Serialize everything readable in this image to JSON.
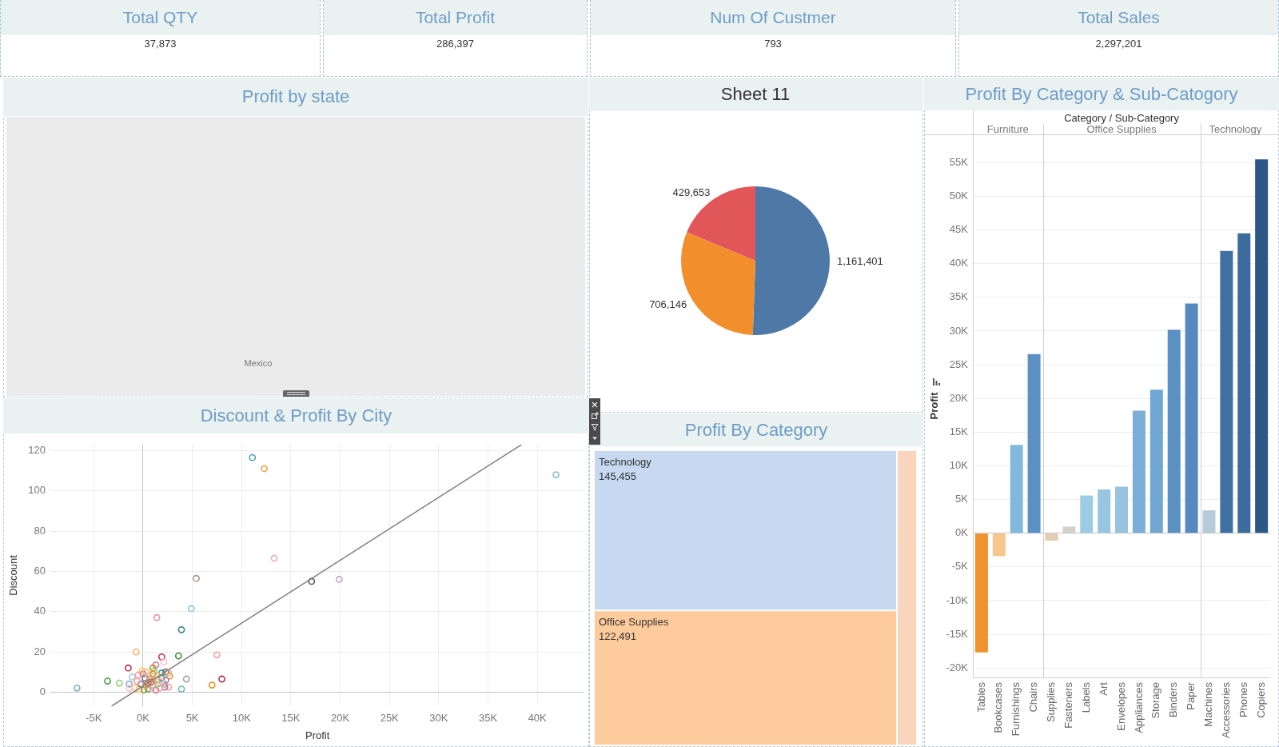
{
  "chart_data": [
    {
      "type": "other",
      "categories": [
        "Total QTY",
        "Total Profit",
        "Num Of Custmer",
        "Total Sales"
      ],
      "values": [
        37873,
        286397,
        793,
        2297201
      ],
      "value_labels": [
        "37,873",
        "286,397",
        "793",
        "2,297,201"
      ]
    },
    {
      "type": "other",
      "title": "Profit by state",
      "annotations": [
        "Mexico"
      ]
    },
    {
      "type": "pie",
      "title": "Sheet 11",
      "categories": [
        null,
        null,
        null
      ],
      "values": [
        1161401,
        706146,
        429653
      ],
      "value_labels": [
        "1,161,401",
        "706,146",
        "429,653"
      ],
      "colors": [
        "#4e79a7",
        "#f28e2b",
        "#e15759"
      ]
    },
    {
      "type": "bar",
      "title": "Profit By Category & Sub-Catogory",
      "xlabel": "Category / Sub-Category",
      "ylabel": "Profit",
      "categories": [
        "Tables",
        "Bookcases",
        "Furnishings",
        "Chairs",
        "Supplies",
        "Fasteners",
        "Labels",
        "Art",
        "Envelopes",
        "Appliances",
        "Storage",
        "Binders",
        "Paper",
        "Machines",
        "Accessories",
        "Phones",
        "Copiers"
      ],
      "values": [
        -17700,
        -3400,
        13100,
        26600,
        -1100,
        1000,
        5600,
        6500,
        6900,
        18200,
        21300,
        30200,
        34100,
        3400,
        41900,
        44500,
        55500
      ],
      "colors": [
        "#f0932f",
        "#f6c68d",
        "#80b9dc",
        "#5a90c4",
        "#e2cdb3",
        "#d3d3cd",
        "#9dcbe4",
        "#98c6e0",
        "#96c4df",
        "#7aaed6",
        "#6fa6d2",
        "#5b90c3",
        "#5689c0",
        "#b3ccd8",
        "#3f70a2",
        "#3c6c9d",
        "#2b5886"
      ],
      "ylim": [
        -21400,
        59200
      ],
      "yticks": [
        {
          "value": -20000,
          "label": "-20K"
        },
        {
          "value": -15000,
          "label": "-15K"
        },
        {
          "value": -10000,
          "label": "-10K"
        },
        {
          "value": -5000,
          "label": "-5K"
        },
        {
          "value": 0,
          "label": "0K"
        },
        {
          "value": 5000,
          "label": "5K"
        },
        {
          "value": 10000,
          "label": "10K"
        },
        {
          "value": 15000,
          "label": "15K"
        },
        {
          "value": 20000,
          "label": "20K"
        },
        {
          "value": 25000,
          "label": "25K"
        },
        {
          "value": 30000,
          "label": "30K"
        },
        {
          "value": 35000,
          "label": "35K"
        },
        {
          "value": 40000,
          "label": "40K"
        },
        {
          "value": 45000,
          "label": "45K"
        },
        {
          "value": 50000,
          "label": "50K"
        },
        {
          "value": 55000,
          "label": "55K"
        }
      ],
      "grid": "y",
      "annotations": [
        "Furniture",
        "Office Supplies",
        "Technology"
      ]
    },
    {
      "type": "scatter",
      "title": "Discount & Profit By City",
      "xlabel": "Profit",
      "ylabel": "Discount",
      "grid": true,
      "xlim": [
        -9400,
        44800
      ],
      "ylim": [
        -7,
        123
      ],
      "xticks": [
        {
          "value": -5000,
          "label": "-5K"
        },
        {
          "value": 0,
          "label": "0K"
        },
        {
          "value": 5000,
          "label": "5K"
        },
        {
          "value": 10000,
          "label": "10K"
        },
        {
          "value": 15000,
          "label": "15K"
        },
        {
          "value": 20000,
          "label": "20K"
        },
        {
          "value": 25000,
          "label": "25K"
        },
        {
          "value": 30000,
          "label": "30K"
        },
        {
          "value": 35000,
          "label": "35K"
        },
        {
          "value": 40000,
          "label": "40K"
        }
      ],
      "yticks": [
        0,
        20,
        40,
        60,
        80,
        100,
        120
      ],
      "series": [
        {
          "type": "scatter",
          "marker": "circle",
          "x": [
            11100,
            12300,
            41900,
            13300,
            5400,
            17100,
            19900,
            4900,
            1400,
            3900,
            -700,
            1900,
            3600,
            7500,
            -1500,
            8000,
            4400,
            7000,
            3900,
            -6700,
            -3600,
            -2400,
            -1400,
            2100,
            -100,
            1000,
            1300,
            1100,
            1900,
            2300,
            2700,
            2600,
            -1400,
            -1100,
            -500,
            200,
            600,
            0,
            700,
            1400,
            1500,
            1900,
            2300,
            2200,
            2600,
            2200,
            -800,
            -400,
            100,
            500,
            900,
            1300,
            1700,
            -200,
            300,
            1000,
            1500,
            1800,
            -600,
            1000,
            300,
            500,
            800
          ],
          "values": [
            116.5,
            111,
            108,
            66.5,
            56.5,
            55,
            56,
            41.5,
            37,
            31,
            20,
            17.5,
            18,
            18.5,
            12,
            6.5,
            6.5,
            3.5,
            1.5,
            2,
            5.5,
            4.5,
            4,
            15,
            10.5,
            12,
            13.5,
            10.5,
            9.5,
            10,
            8,
            9.5,
            2,
            7.5,
            8.5,
            7,
            8,
            9,
            6.5,
            8,
            6,
            7,
            6,
            4,
            2.5,
            2.5,
            2,
            1.5,
            1,
            1.5,
            2,
            1,
            2,
            4,
            3.5,
            3.5,
            4,
            5.5,
            5.5,
            9,
            10,
            4.5,
            5
          ],
          "colors": [
            "#4e9fb5",
            "#f1a340",
            "#86bcd6",
            "#f4a6be",
            "#a89488",
            "#555555",
            "#c9a2cc",
            "#8cc2e0",
            "#ee8fa0",
            "#2f8080",
            "#f5b86a",
            "#c8324a",
            "#3d8a3d",
            "#f0a0a0",
            "#b8334a",
            "#b03050",
            "#a0a0a0",
            "#e8901a",
            "#6fb5a8",
            "#79b0c0",
            "#4c9a4c",
            "#8cd17d",
            "#7fa9c9",
            "#fabfd2",
            "#f1ce63",
            "#b6992d",
            "#d37295",
            "#8cd17d",
            "#499894",
            "#79706e",
            "#f28e2b",
            "#d7b5a6",
            "#fabfd2",
            "#a0cbe8",
            "#ff9d9a",
            "#4e79a7",
            "#a0cbe8",
            "#d37295",
            "#f28e2b",
            "#ffbe7d",
            "#f28e2b",
            "#499894",
            "#b07aa1",
            "#86bcb6",
            "#ff9d9a",
            "#b07aa1",
            "#ffbe7d",
            "#f1ce63",
            "#b6992d",
            "#59a14f",
            "#fabfd2",
            "#d37295",
            "#ff9d9a",
            "#4e79a7",
            "#f28e2b",
            "#bab0ac",
            "#8cd17d",
            "#fabfd2",
            "#ff9d9a",
            "#f28e2b",
            "#ffbe7d",
            "#9d7660",
            "#e15759"
          ]
        },
        {
          "type": "line",
          "marker": "none",
          "x": [
            -3200,
            38400
          ],
          "values": [
            -7,
            123
          ],
          "color": "#808080"
        }
      ]
    },
    {
      "type": "other",
      "title": "Profit By Category",
      "categories": [
        "Technology",
        "Office Supplies",
        null
      ],
      "values": [
        145455,
        122491,
        null
      ],
      "value_labels": [
        "145,455",
        "122,491",
        null
      ],
      "colors": [
        "#c6d9f1",
        "#fecb9c",
        "#f9d6bb"
      ]
    }
  ]
}
